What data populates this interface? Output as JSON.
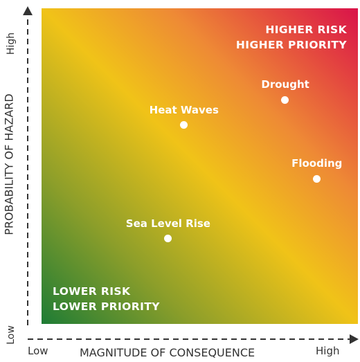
{
  "matrix": {
    "quadrant_top_right": [
      "HIGHER RISK",
      "HIGHER PRIORITY"
    ],
    "quadrant_bottom_left": [
      "LOWER RISK",
      "LOWER PRIORITY"
    ]
  },
  "axes": {
    "x_label": "MAGNITUDE OF CONSEQUENCE",
    "x_low": "Low",
    "x_high": "High",
    "y_label": "PROBABILITY OF HAZARD",
    "y_low": "Low",
    "y_high": "High"
  },
  "hazards": [
    {
      "name": "Drought",
      "consequence": 0.77,
      "probability": 0.71
    },
    {
      "name": "Heat Waves",
      "consequence": 0.45,
      "probability": 0.63
    },
    {
      "name": "Flooding",
      "consequence": 0.87,
      "probability": 0.46
    },
    {
      "name": "Sea Level Rise",
      "consequence": 0.4,
      "probability": 0.27
    }
  ],
  "colors": {
    "low": "#1e7c35",
    "mid": "#f0c318",
    "high": "#d9134a"
  }
}
